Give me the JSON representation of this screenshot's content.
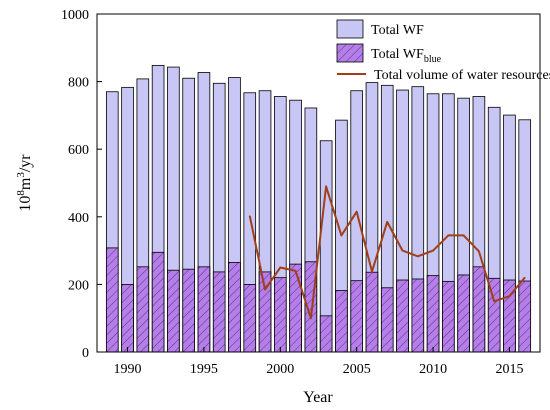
{
  "chart_data": {
    "type": "bar",
    "xlabel": "Year",
    "ylabel": {
      "base": "10",
      "exp1": "8",
      "mid": "m",
      "exp2": "3",
      "tail": "/yr"
    },
    "ylim": [
      0,
      1000
    ],
    "yticks": [
      0,
      200,
      400,
      600,
      800,
      1000
    ],
    "xticks": [
      1990,
      1995,
      2000,
      2005,
      2010,
      2015
    ],
    "xlim": [
      1988,
      2017
    ],
    "colors": {
      "total": "#c8c6f4",
      "blue": "#b57ee8",
      "blue_hatch": "#4b2a7a",
      "line": "#a0401b"
    },
    "years": [
      1989,
      1990,
      1991,
      1992,
      1993,
      1994,
      1995,
      1996,
      1997,
      1998,
      1999,
      2000,
      2001,
      2002,
      2003,
      2004,
      2005,
      2006,
      2007,
      2008,
      2009,
      2010,
      2011,
      2012,
      2013,
      2014,
      2015,
      2016
    ],
    "series": [
      {
        "name": "Total WF",
        "values": [
          770,
          783,
          808,
          848,
          843,
          810,
          827,
          795,
          812,
          767,
          773,
          756,
          745,
          722,
          625,
          686,
          773,
          797,
          789,
          775,
          785,
          764,
          764,
          751,
          756,
          724,
          701,
          687
        ]
      },
      {
        "name": "Total WF",
        "name_sub": "blue",
        "values": [
          308,
          200,
          252,
          295,
          242,
          245,
          252,
          237,
          265,
          200,
          237,
          220,
          260,
          267,
          107,
          182,
          211,
          236,
          190,
          213,
          216,
          226,
          209,
          228,
          252,
          218,
          213,
          210
        ]
      },
      {
        "name": "Total volume of water resources",
        "type": "line",
        "x": [
          1998,
          1999,
          2000,
          2001,
          2002,
          2003,
          2004,
          2005,
          2006,
          2007,
          2008,
          2009,
          2010,
          2011,
          2012,
          2013,
          2014,
          2015,
          2016
        ],
        "values": [
          402,
          185,
          250,
          240,
          100,
          490,
          345,
          415,
          238,
          385,
          300,
          283,
          300,
          345,
          345,
          298,
          150,
          165,
          220
        ]
      }
    ],
    "legend_position": "top-right"
  }
}
